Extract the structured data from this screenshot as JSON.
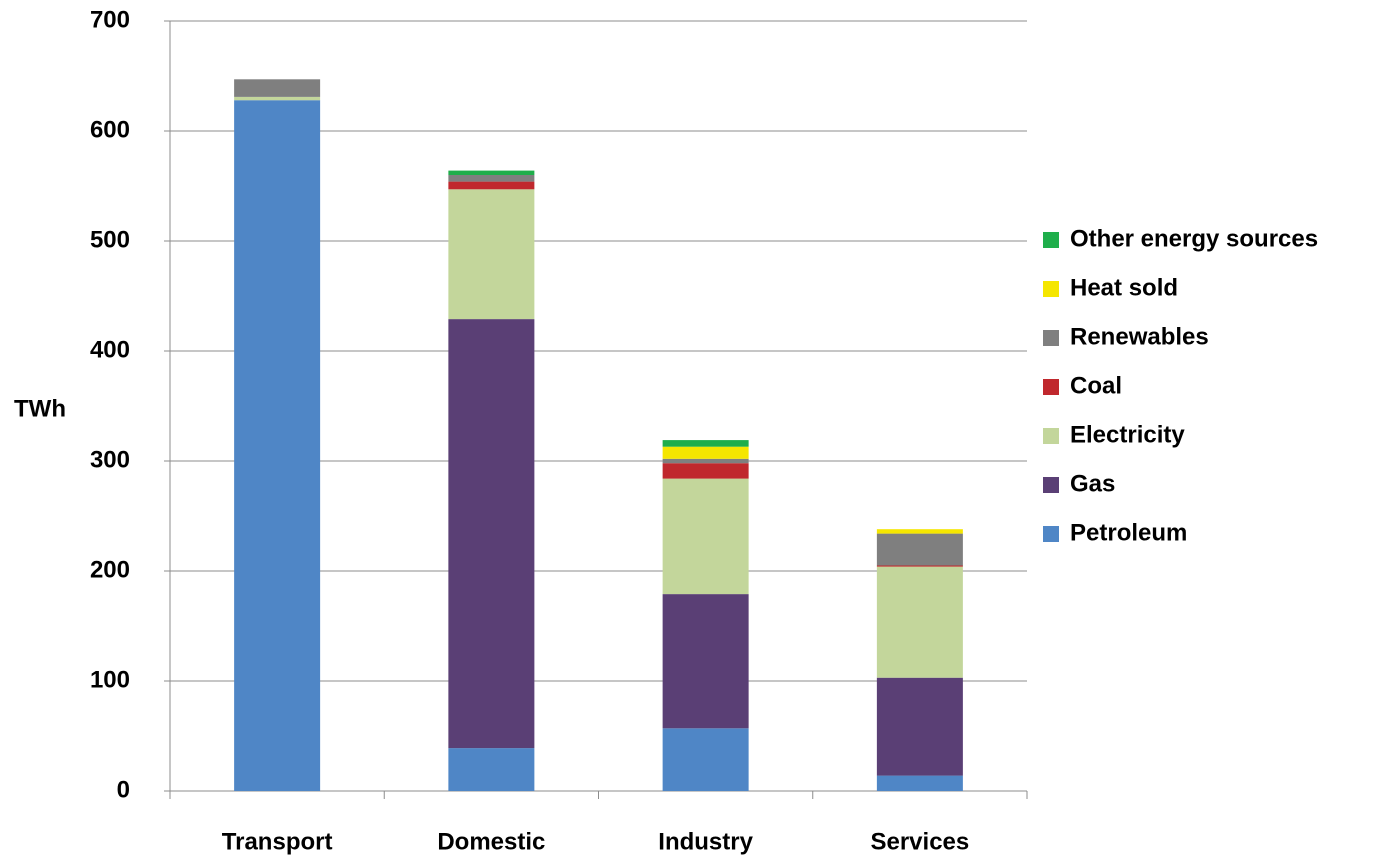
{
  "chart_data": {
    "type": "stacked_bar",
    "y_label": "TWh",
    "categories": [
      "Transport",
      "Domestic",
      "Industry",
      "Services"
    ],
    "series": [
      {
        "name": "Petroleum",
        "color": "#4f86c6",
        "values": [
          628,
          39,
          57,
          14
        ]
      },
      {
        "name": "Gas",
        "color": "#5a3f75",
        "values": [
          0,
          390,
          122,
          89
        ]
      },
      {
        "name": "Electricity",
        "color": "#c3d69b",
        "values": [
          3,
          118,
          105,
          101
        ]
      },
      {
        "name": "Coal",
        "color": "#c0282d",
        "values": [
          0,
          7,
          14,
          1
        ]
      },
      {
        "name": "Renewables",
        "color": "#7f7f7f",
        "values": [
          16,
          6,
          4,
          29
        ]
      },
      {
        "name": "Heat sold",
        "color": "#f5e600",
        "values": [
          0,
          0,
          11,
          4
        ]
      },
      {
        "name": "Other energy sources",
        "color": "#1fae4b",
        "values": [
          0,
          4,
          6,
          0
        ]
      }
    ],
    "ylim": [
      0,
      700
    ],
    "yticks": [
      0,
      100,
      200,
      300,
      400,
      500,
      600,
      700
    ],
    "grid": true,
    "legend": "right"
  }
}
